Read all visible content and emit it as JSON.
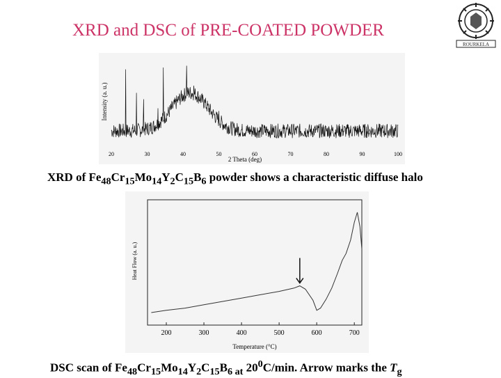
{
  "slide": {
    "title": "XRD and DSC of PRE-COATED POWDER"
  },
  "logo": {
    "name": "institute-seal",
    "text": "ROURKELA"
  },
  "captions": {
    "xrd": {
      "pre": "XRD of Fe",
      "s1": "48",
      "t1": "Cr",
      "s2": "15",
      "t2": "Mo",
      "s3": "14",
      "t3": "Y",
      "s4": "2",
      "t4": "C",
      "s5": "15",
      "t5": "B",
      "s6": "6",
      "post": " powder shows a characteristic diffuse halo"
    },
    "dsc": {
      "pre": "DSC scan of Fe",
      "s1": "48",
      "t1": "Cr",
      "s2": "15",
      "t2": "Mo",
      "s3": "14",
      "t3": "Y",
      "s4": "2",
      "t4": "C",
      "s5": "15",
      "t5": "B",
      "s6": "6 at",
      "mid": " 20",
      "sup": "0",
      "post": "C/min. Arrow marks the ",
      "tg": "T",
      "tgsub": "g"
    }
  },
  "chart_data": [
    {
      "type": "line",
      "xlabel": "2 Theta (deg)",
      "ylabel": "Intensity (a. u.)",
      "xlim": [
        20,
        100
      ],
      "xticks": [
        20,
        30,
        40,
        50,
        60,
        70,
        80,
        90,
        100
      ],
      "halo": {
        "center": 42,
        "width": 5,
        "height": 0.42
      },
      "baseline": 0.2,
      "noise": 0.08,
      "sharp_peaks": [
        {
          "x": 24,
          "y": 0.88
        },
        {
          "x": 27,
          "y": 0.62
        },
        {
          "x": 29,
          "y": 0.55
        },
        {
          "x": 33,
          "y": 0.45
        },
        {
          "x": 34.5,
          "y": 0.9
        },
        {
          "x": 38,
          "y": 0.5
        },
        {
          "x": 41,
          "y": 0.92
        },
        {
          "x": 43,
          "y": 0.7
        },
        {
          "x": 46,
          "y": 0.55
        },
        {
          "x": 47.5,
          "y": 0.48
        },
        {
          "x": 50,
          "y": 0.42
        }
      ]
    },
    {
      "type": "line",
      "xlabel": "Temperature (°C)",
      "ylabel": "Heat Flow (a. u.)",
      "xlim": [
        150,
        720
      ],
      "xticks": [
        200,
        300,
        400,
        500,
        600,
        700
      ],
      "ylim": [
        0,
        1
      ],
      "points": [
        [
          160,
          0.05
        ],
        [
          200,
          0.07
        ],
        [
          250,
          0.09
        ],
        [
          300,
          0.12
        ],
        [
          350,
          0.15
        ],
        [
          400,
          0.18
        ],
        [
          450,
          0.21
        ],
        [
          500,
          0.24
        ],
        [
          540,
          0.27
        ],
        [
          555,
          0.29
        ],
        [
          570,
          0.26
        ],
        [
          590,
          0.16
        ],
        [
          600,
          0.07
        ],
        [
          610,
          0.09
        ],
        [
          625,
          0.17
        ],
        [
          640,
          0.27
        ],
        [
          655,
          0.4
        ],
        [
          668,
          0.52
        ],
        [
          678,
          0.58
        ],
        [
          690,
          0.7
        ],
        [
          700,
          0.86
        ],
        [
          708,
          0.95
        ],
        [
          715,
          0.82
        ],
        [
          720,
          0.62
        ]
      ],
      "arrow_x": 555
    }
  ]
}
